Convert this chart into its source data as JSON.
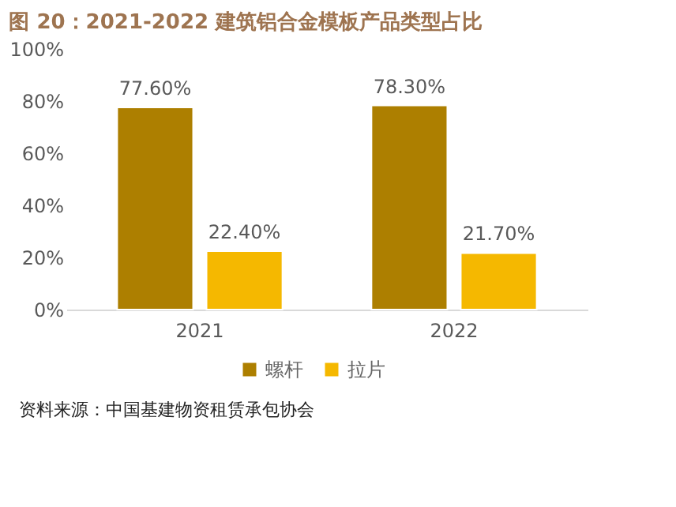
{
  "chart_data": {
    "type": "bar",
    "title": "图 20：2021-2022 建筑铝合金模板产品类型占比",
    "categories": [
      "2021",
      "2022"
    ],
    "series": [
      {
        "name": "螺杆",
        "color": "#ad7f00",
        "values": [
          77.6,
          78.3
        ],
        "value_labels": [
          "77.60%",
          "78.30%"
        ]
      },
      {
        "name": "拉片",
        "color": "#f5b800",
        "values": [
          22.4,
          21.7
        ],
        "value_labels": [
          "22.40%",
          "21.70%"
        ]
      }
    ],
    "ylim": [
      0,
      100
    ],
    "yticks": [
      {
        "value": 0,
        "label": "0%"
      },
      {
        "value": 20,
        "label": "20%"
      },
      {
        "value": 40,
        "label": "40%"
      },
      {
        "value": 60,
        "label": "60%"
      },
      {
        "value": 80,
        "label": "80%"
      },
      {
        "value": 100,
        "label": "100%"
      }
    ],
    "grid": false,
    "legend": "bottom",
    "annotations": [
      "资料来源：中国基建物资租赁承包协会"
    ]
  }
}
